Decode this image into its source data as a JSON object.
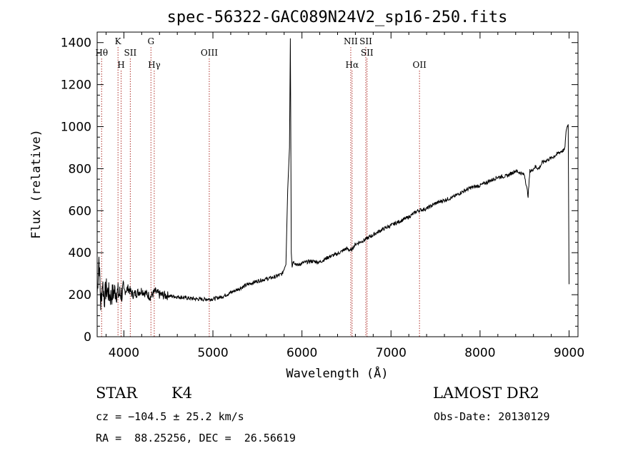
{
  "chart_data": {
    "type": "line",
    "title": "spec-56322-GAC089N24V2_sp16-250.fits",
    "xlabel": "Wavelength (Å)",
    "ylabel": "Flux (relative)",
    "xlim": [
      3700,
      9100
    ],
    "ylim": [
      0,
      1450
    ],
    "x_ticks": [
      4000,
      5000,
      6000,
      7000,
      8000,
      9000
    ],
    "y_ticks": [
      0,
      200,
      400,
      600,
      800,
      1000,
      1200,
      1400
    ],
    "series": [
      {
        "x": [
          3700,
          3720,
          3740,
          3760,
          3780,
          3800,
          3850,
          3900,
          3950,
          4000,
          4050,
          4100,
          4150,
          4200,
          4250,
          4300,
          4350,
          4400,
          4500,
          4600,
          4700,
          4800,
          4900,
          5000,
          5100,
          5200,
          5300,
          5400,
          5500,
          5600,
          5700,
          5780,
          5820,
          5840,
          5860,
          5870,
          5880,
          5890,
          5900,
          5950,
          6000,
          6100,
          6200,
          6300,
          6400,
          6500,
          6550,
          6600,
          6700,
          6800,
          6900,
          7000,
          7100,
          7200,
          7300,
          7400,
          7500,
          7600,
          7700,
          7800,
          7900,
          8000,
          8100,
          8200,
          8300,
          8400,
          8450,
          8500,
          8540,
          8560,
          8580,
          8620,
          8660,
          8700,
          8800,
          8900,
          8950,
          8970,
          8990,
          9000
        ],
        "y": [
          200,
          380,
          150,
          260,
          180,
          230,
          190,
          220,
          200,
          215,
          230,
          200,
          210,
          220,
          205,
          190,
          215,
          200,
          195,
          190,
          185,
          180,
          178,
          180,
          190,
          210,
          230,
          250,
          265,
          275,
          285,
          300,
          350,
          700,
          900,
          1420,
          400,
          330,
          360,
          340,
          350,
          360,
          355,
          380,
          395,
          420,
          410,
          440,
          460,
          485,
          510,
          530,
          550,
          570,
          600,
          610,
          635,
          650,
          665,
          690,
          710,
          720,
          740,
          760,
          765,
          790,
          780,
          770,
          670,
          790,
          790,
          810,
          800,
          830,
          850,
          880,
          890,
          990,
          1010,
          250
        ]
      }
    ],
    "lines": [
      {
        "wl": 3750,
        "label": "Hθ",
        "row": 2
      },
      {
        "wl": 3934,
        "label": "K",
        "row": 1
      },
      {
        "wl": 3969,
        "label": "H",
        "row": 3
      },
      {
        "wl": 4072,
        "label": "SII",
        "row": 2
      },
      {
        "wl": 4304,
        "label": "G",
        "row": 1
      },
      {
        "wl": 4341,
        "label": "Hγ",
        "row": 3
      },
      {
        "wl": 4959,
        "label": "OIII",
        "row": 2
      },
      {
        "wl": 6548,
        "label": "NII",
        "row": 1
      },
      {
        "wl": 6563,
        "label": "Hα",
        "row": 3
      },
      {
        "wl": 6717,
        "label": "SII",
        "row": 1
      },
      {
        "wl": 6731,
        "label": "SII",
        "row": 2
      },
      {
        "wl": 7320,
        "label": "OII",
        "row": 3
      }
    ],
    "grid": false
  },
  "info": {
    "class": "STAR",
    "subclass": "K4",
    "survey": "LAMOST DR2",
    "cz": "cz = −104.5 ± 25.2 km/s",
    "obs_date": "Obs-Date: 20130129",
    "coords": "RA =  88.25256, DEC =  26.56619"
  },
  "colors": {
    "axis": "#000000",
    "spectrum": "#000000",
    "line_marker": "#b0302a"
  }
}
